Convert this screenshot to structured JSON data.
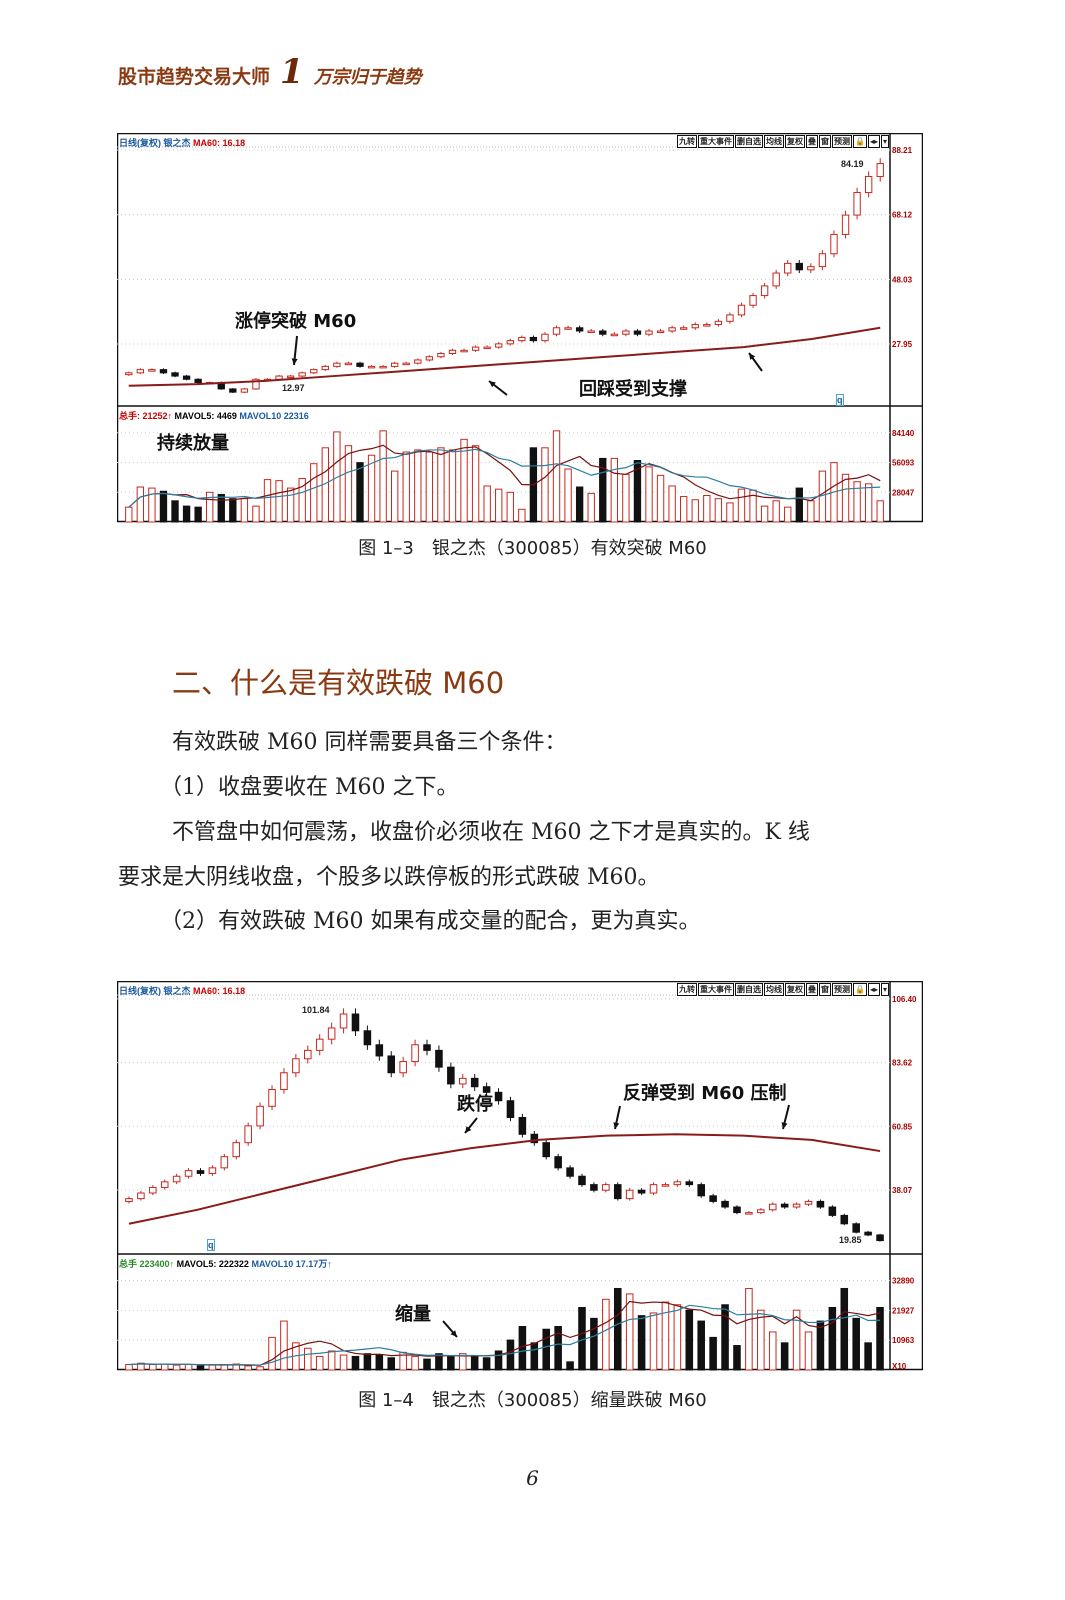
{
  "header": {
    "book_title": "股市趋势交易大师",
    "volume_number": "1",
    "volume_subtitle": "万宗归于趋势"
  },
  "toolbar": [
    "九转",
    "重大事件",
    "删自选",
    "均线",
    "复权",
    "叠",
    "窗",
    "预测",
    "🔒",
    "◂▸",
    "▾"
  ],
  "figure1": {
    "caption": "图 1–3　银之杰（300085）有效突破 M60",
    "info_period": "日线(复权)",
    "info_name": "银之杰",
    "info_ma": "MA60: 16.18",
    "vol_info": {
      "total": "总手: 21252↑",
      "mavol5": "MAVOL5: 4469",
      "mavol10": "MAVOL10  22316"
    },
    "price_ticks": [
      "88.21",
      "68.12",
      "48.03",
      "27.95"
    ],
    "vol_ticks": [
      "84140",
      "56093",
      "28047"
    ],
    "high_label": "84.19",
    "low_label": "12.97",
    "marker": "q",
    "annotations": {
      "breakout": "涨停突破 M60",
      "support": "回踩受到支撑",
      "volume": "持续放量"
    }
  },
  "section": {
    "heading": "二、什么是有效跌破 M60",
    "paragraphs": [
      "有效跌破 M60 同样需要具备三个条件：",
      "（1）收盘要收在 M60 之下。",
      "不管盘中如何震荡，收盘价必须收在 M60 之下才是真实的。K 线",
      "要求是大阴线收盘，个股多以跌停板的形式跌破 M60。",
      "（2）有效跌破 M60 如果有成交量的配合，更为真实。"
    ]
  },
  "figure2": {
    "caption": "图 1–4　银之杰（300085）缩量跌破 M60",
    "info_period": "日线(复权)",
    "info_name": "银之杰",
    "info_ma": "MA60: 16.18",
    "vol_info": {
      "total": "总手  223400↑",
      "mavol5": "MAVOL5: 222322",
      "mavol10": "MAVOL10  17.17万↑"
    },
    "price_ticks": [
      "106.40",
      "83.62",
      "60.85",
      "38.07"
    ],
    "vol_ticks": [
      "32890",
      "21927",
      "10963",
      "X10"
    ],
    "high_label": "101.84",
    "low_label": "19.85",
    "marker": "q",
    "annotations": {
      "limit_down": "跌停",
      "pressure": "反弹受到 M60 压制",
      "volume": "缩量"
    }
  },
  "page_number": "6",
  "colors": {
    "up": "#c8281e",
    "down": "#111111",
    "ma60": "#8b1a1a",
    "mavol5": "#7a1010",
    "mavol10": "#2a7fa0",
    "heading": "#8a3a12"
  },
  "chart_data": [
    {
      "type": "candlestick",
      "ylim": [
        8.7,
        93.5
      ],
      "vol_ylim": [
        0,
        100000
      ],
      "close": [
        19,
        20,
        20,
        19,
        18,
        17,
        16,
        16,
        14,
        13,
        14,
        17,
        17,
        18,
        18,
        19,
        20,
        21,
        22,
        22,
        21,
        21,
        21,
        22,
        22,
        23,
        24,
        25,
        26,
        26,
        27,
        27,
        28,
        29,
        30,
        29,
        31,
        33,
        33,
        32,
        32,
        31,
        31,
        32,
        31,
        32,
        32,
        33,
        33,
        34,
        34,
        35,
        37,
        40,
        43,
        46,
        50,
        53,
        51,
        52,
        56,
        62,
        68,
        75,
        80,
        84
      ],
      "ma60": [
        15,
        15.5,
        16.5,
        18,
        19.5,
        21,
        22.5,
        24,
        25.5,
        27,
        29.5,
        33
      ],
      "volume": [
        14000,
        33000,
        32000,
        29000,
        20000,
        15000,
        14000,
        28000,
        26000,
        22000,
        22000,
        15000,
        40000,
        39000,
        32000,
        41000,
        55000,
        70000,
        85000,
        72000,
        56000,
        63000,
        86000,
        48000,
        66000,
        68000,
        66000,
        70000,
        68000,
        78000,
        72000,
        34000,
        31000,
        28000,
        12000,
        70000,
        70000,
        86000,
        50000,
        33000,
        27000,
        60000,
        60000,
        45000,
        58000,
        52000,
        44000,
        34000,
        24000,
        21000,
        25000,
        22000,
        18000,
        31000,
        30000,
        15000,
        20000,
        14000,
        32000,
        20000,
        48000,
        56000,
        45000,
        38000,
        36000,
        20000
      ]
    },
    {
      "type": "candlestick",
      "ylim": [
        15.2,
        112.8
      ],
      "vol_ylim": [
        0,
        39000
      ],
      "close": [
        35,
        37,
        39,
        41,
        43,
        45,
        44,
        46,
        50,
        55,
        61,
        68,
        74,
        80,
        85,
        88,
        92,
        96,
        101,
        95,
        90,
        86,
        80,
        84,
        90,
        88,
        82,
        76,
        78,
        75,
        73,
        70,
        64,
        58,
        55,
        50,
        46,
        43,
        40,
        38,
        40,
        35,
        38,
        37,
        40,
        40,
        41,
        40,
        36,
        34,
        32,
        30,
        30,
        31,
        33,
        32,
        33,
        34,
        32,
        29,
        26,
        23,
        22,
        20
      ],
      "ma60": [
        26,
        31,
        37,
        43,
        49,
        53,
        56,
        57.5,
        58,
        57.5,
        56,
        52
      ],
      "volume": [
        2000,
        2500,
        2000,
        2200,
        1800,
        2000,
        1500,
        1800,
        2000,
        2200,
        1500,
        1200,
        12000,
        18000,
        10000,
        8000,
        5000,
        7000,
        5500,
        5000,
        6000,
        5500,
        4500,
        6500,
        5000,
        4000,
        6000,
        5000,
        6000,
        5000,
        4500,
        7000,
        11000,
        16000,
        10000,
        15000,
        16000,
        3000,
        23000,
        19000,
        26000,
        30000,
        28000,
        20000,
        21000,
        25000,
        24000,
        22000,
        18000,
        12000,
        24000,
        9000,
        30000,
        22000,
        14000,
        10000,
        22000,
        14000,
        18000,
        23000,
        30000,
        19000,
        10000,
        23000
      ]
    }
  ]
}
